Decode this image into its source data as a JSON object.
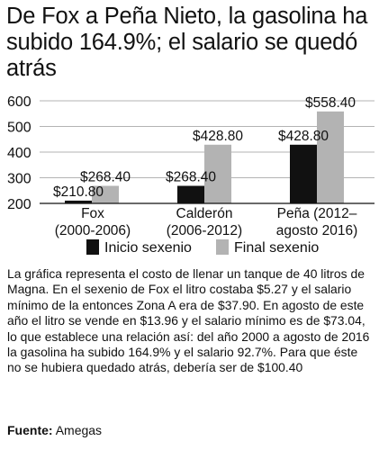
{
  "title": "De Fox a Peña Nieto, la gasolina ha subido 164.9%; el salario se quedó atrás",
  "chart_data": {
    "type": "bar",
    "title": "De Fox a Peña Nieto, la gasolina ha subido 164.9%; el salario se quedó atrás",
    "categories": [
      [
        "Fox",
        "(2000-2006)"
      ],
      [
        "Calderón",
        "(2006-2012)"
      ],
      [
        "Peña (2012–",
        "agosto 2016)"
      ]
    ],
    "series": [
      {
        "name": "Inicio sexenio",
        "values": [
          210.8,
          268.4,
          428.8
        ],
        "labels": [
          "$210.80",
          "$268.40",
          "$428.80"
        ],
        "color": "#111111"
      },
      {
        "name": "Final sexenio",
        "values": [
          268.4,
          428.8,
          558.4
        ],
        "labels": [
          "$268.40",
          "$428.80",
          "$558.40"
        ],
        "color": "#b3b3b3"
      }
    ],
    "yticks": [
      "600",
      "500",
      "400",
      "300",
      "200"
    ],
    "ylim": [
      200,
      600
    ],
    "xlabel": "",
    "ylabel": "",
    "grid": true,
    "legend_position": "bottom"
  },
  "note": "La gráfica representa el costo de llenar un tanque de 40 litros de Magna. En el sexenio de Fox el litro costaba $5.27 y el salario mínimo de la entonces Zona A era de $37.90. En agosto de este año el litro se vende en $13.96 y el salario mínimo es de $73.04, lo que establece una relación así: del año 2000 a agosto de 2016 la gasolina ha subido 164.9% y el salario 92.7%. Para que éste no se hubiera quedado atrás, debería ser de $100.40",
  "source": {
    "label": "Fuente:",
    "text": "Amegas"
  }
}
